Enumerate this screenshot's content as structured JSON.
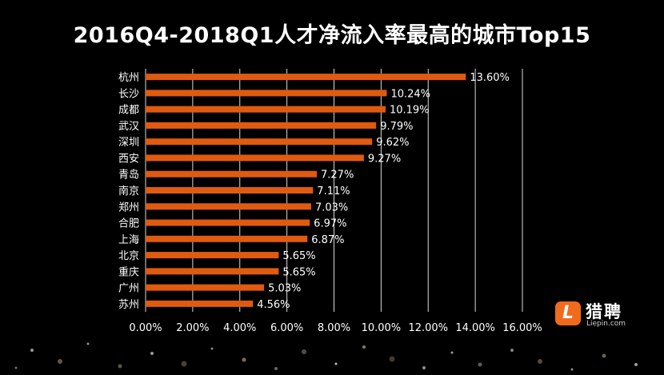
{
  "chart_data": {
    "type": "bar",
    "orientation": "horizontal",
    "title": "2016Q4-2018Q1人才净流入率最高的城市Top15",
    "categories": [
      "杭州",
      "长沙",
      "成都",
      "武汉",
      "深圳",
      "西安",
      "青岛",
      "南京",
      "郑州",
      "合肥",
      "上海",
      "北京",
      "重庆",
      "广州",
      "苏州"
    ],
    "values": [
      13.6,
      10.24,
      10.19,
      9.79,
      9.62,
      9.27,
      7.27,
      7.11,
      7.03,
      6.97,
      6.87,
      5.65,
      5.65,
      5.03,
      4.56
    ],
    "value_labels": [
      "13.60%",
      "10.24%",
      "10.19%",
      "9.79%",
      "9.62%",
      "9.27%",
      "7.27%",
      "7.11%",
      "7.03%",
      "6.97%",
      "6.87%",
      "5.65%",
      "5.65%",
      "5.03%",
      "4.56%"
    ],
    "xlim": [
      0,
      16
    ],
    "xticks": [
      "0.00%",
      "2.00%",
      "4.00%",
      "6.00%",
      "8.00%",
      "10.00%",
      "12.00%",
      "14.00%",
      "16.00%"
    ],
    "xlabel": "",
    "ylabel": "",
    "grid": true,
    "bar_color": "#e05a10"
  },
  "logo": {
    "badge": "L",
    "name_cn": "猎聘",
    "name_en": "Liepin.com"
  },
  "colors": {
    "background": "#000000",
    "text": "#ffffff",
    "grid": "#d9d9d9",
    "bar": "#e05a10",
    "accent": "#f26a1b"
  }
}
